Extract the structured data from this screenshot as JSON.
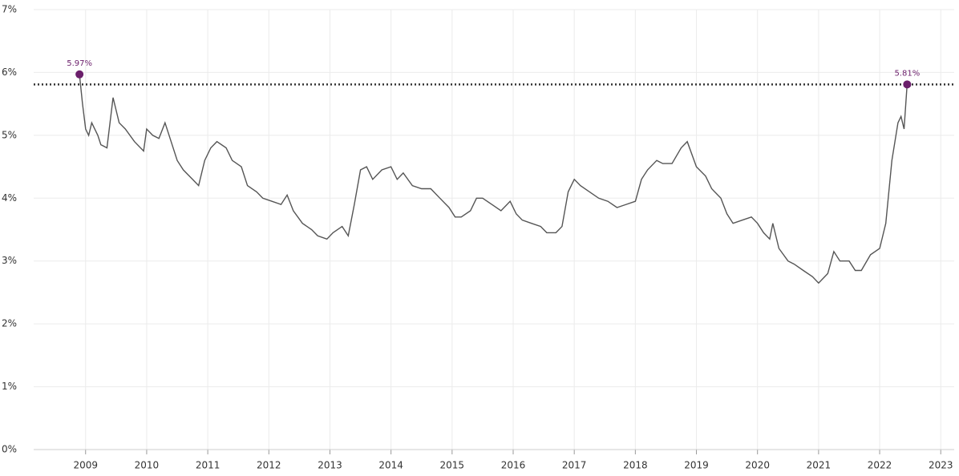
{
  "chart_data": {
    "type": "line",
    "x": [
      2008.9,
      2008.95,
      2009.0,
      2009.05,
      2009.1,
      2009.2,
      2009.25,
      2009.35,
      2009.45,
      2009.55,
      2009.65,
      2009.8,
      2009.95,
      2010.0,
      2010.1,
      2010.2,
      2010.3,
      2010.4,
      2010.5,
      2010.6,
      2010.75,
      2010.85,
      2010.95,
      2011.05,
      2011.15,
      2011.3,
      2011.4,
      2011.55,
      2011.65,
      2011.8,
      2011.9,
      2012.05,
      2012.2,
      2012.3,
      2012.4,
      2012.55,
      2012.7,
      2012.8,
      2012.95,
      2013.05,
      2013.2,
      2013.3,
      2013.4,
      2013.5,
      2013.6,
      2013.7,
      2013.85,
      2014.0,
      2014.1,
      2014.2,
      2014.35,
      2014.5,
      2014.65,
      2014.8,
      2014.95,
      2015.05,
      2015.15,
      2015.3,
      2015.4,
      2015.5,
      2015.65,
      2015.8,
      2015.95,
      2016.05,
      2016.15,
      2016.3,
      2016.45,
      2016.55,
      2016.7,
      2016.8,
      2016.9,
      2017.0,
      2017.1,
      2017.25,
      2017.4,
      2017.55,
      2017.7,
      2017.85,
      2018.0,
      2018.1,
      2018.2,
      2018.35,
      2018.45,
      2018.6,
      2018.75,
      2018.85,
      2019.0,
      2019.15,
      2019.25,
      2019.4,
      2019.5,
      2019.6,
      2019.75,
      2019.9,
      2020.0,
      2020.1,
      2020.2,
      2020.25,
      2020.35,
      2020.5,
      2020.6,
      2020.75,
      2020.9,
      2021.0,
      2021.15,
      2021.25,
      2021.35,
      2021.5,
      2021.6,
      2021.7,
      2021.85,
      2022.0,
      2022.1,
      2022.2,
      2022.3,
      2022.35,
      2022.4,
      2022.45
    ],
    "series": [
      {
        "color": "#555555",
        "values": [
          5.97,
          5.5,
          5.1,
          5.0,
          5.2,
          5.0,
          4.85,
          4.8,
          5.6,
          5.2,
          5.1,
          4.9,
          4.75,
          5.1,
          5.0,
          4.95,
          5.2,
          4.9,
          4.6,
          4.45,
          4.3,
          4.2,
          4.6,
          4.8,
          4.9,
          4.8,
          4.6,
          4.5,
          4.2,
          4.1,
          4.0,
          3.95,
          3.9,
          4.05,
          3.8,
          3.6,
          3.5,
          3.4,
          3.35,
          3.45,
          3.55,
          3.4,
          3.9,
          4.45,
          4.5,
          4.3,
          4.45,
          4.5,
          4.3,
          4.4,
          4.2,
          4.15,
          4.15,
          4.0,
          3.85,
          3.7,
          3.7,
          3.8,
          4.0,
          4.0,
          3.9,
          3.8,
          3.95,
          3.75,
          3.65,
          3.6,
          3.55,
          3.45,
          3.45,
          3.55,
          4.1,
          4.3,
          4.2,
          4.1,
          4.0,
          3.95,
          3.85,
          3.9,
          3.95,
          4.3,
          4.45,
          4.6,
          4.55,
          4.55,
          4.8,
          4.9,
          4.5,
          4.35,
          4.15,
          4.0,
          3.75,
          3.6,
          3.65,
          3.7,
          3.6,
          3.45,
          3.35,
          3.6,
          3.2,
          3.0,
          2.95,
          2.85,
          2.75,
          2.65,
          2.8,
          3.15,
          3.0,
          3.0,
          2.85,
          2.85,
          3.1,
          3.2,
          3.6,
          4.6,
          5.2,
          5.3,
          5.1,
          5.81
        ]
      }
    ],
    "annotations": [
      {
        "x": 2008.9,
        "y": 5.97,
        "label": "5.97%",
        "color": "#6b1f6b"
      },
      {
        "x": 2022.45,
        "y": 5.81,
        "label": "5.81%",
        "color": "#6b1f6b"
      }
    ],
    "hline": {
      "value": 5.81,
      "color": "#333333"
    },
    "xlim": [
      2008.15,
      2023.22
    ],
    "xticks": [
      2009,
      2010,
      2011,
      2012,
      2013,
      2014,
      2015,
      2016,
      2017,
      2018,
      2019,
      2020,
      2021,
      2022,
      2023
    ],
    "ylim": [
      0,
      7
    ],
    "yticks": [
      {
        "value": 0,
        "label": "0%"
      },
      {
        "value": 1,
        "label": "1%"
      },
      {
        "value": 2,
        "label": "2%"
      },
      {
        "value": 3,
        "label": "3%"
      },
      {
        "value": 4,
        "label": "4%"
      },
      {
        "value": 5,
        "label": "5%"
      },
      {
        "value": 6,
        "label": "6%"
      },
      {
        "value": 7,
        "label": "7%"
      }
    ],
    "grid": true
  }
}
